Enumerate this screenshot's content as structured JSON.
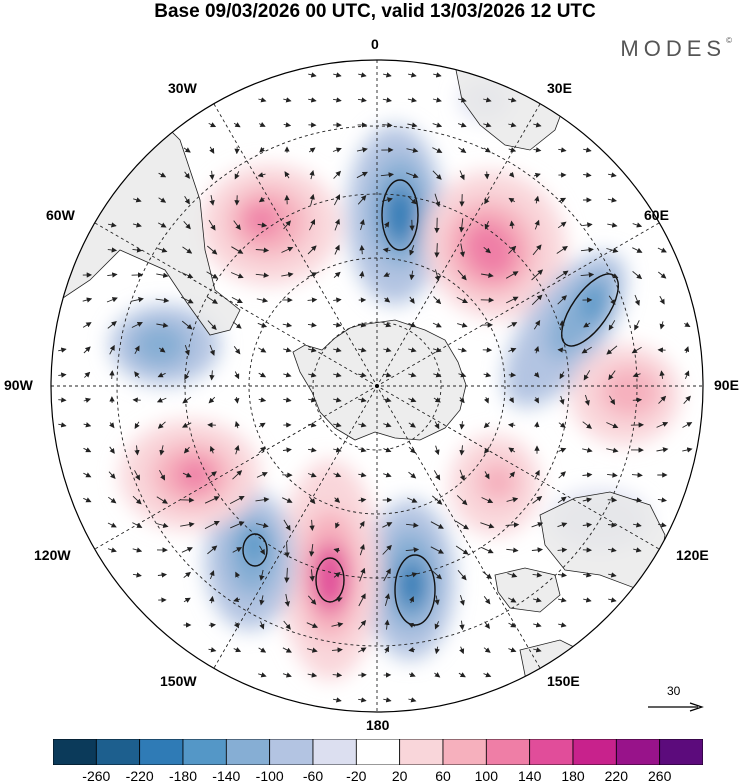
{
  "title": "Base 09/03/2026 00 UTC, valid 13/03/2026 12 UTC",
  "brand": "MODES",
  "brand_mark": "©",
  "map": {
    "projection": "south polar stereographic",
    "longitude_labels": [
      "0",
      "30E",
      "60E",
      "90E",
      "120E",
      "150E",
      "180",
      "150W",
      "120W",
      "90W",
      "60W",
      "30W"
    ],
    "wind_reference": "30"
  },
  "colorbar": {
    "colors": [
      "#0b3a5a",
      "#1d5f8e",
      "#2f7bb6",
      "#5497c7",
      "#86aed4",
      "#b3c4e2",
      "#dcdff0",
      "#ffffff",
      "#f9d6da",
      "#f6b0bd",
      "#ef7ea6",
      "#e14d9a",
      "#c8228c",
      "#98138a",
      "#5c0b7c"
    ],
    "ticks": [
      "-260",
      "-220",
      "-180",
      "-140",
      "-100",
      "-60",
      "-20",
      "20",
      "60",
      "100",
      "140",
      "180",
      "220",
      "260"
    ]
  },
  "colors": {
    "land": "#e9e9e9",
    "coast": "#222222",
    "grid": "#222222"
  }
}
